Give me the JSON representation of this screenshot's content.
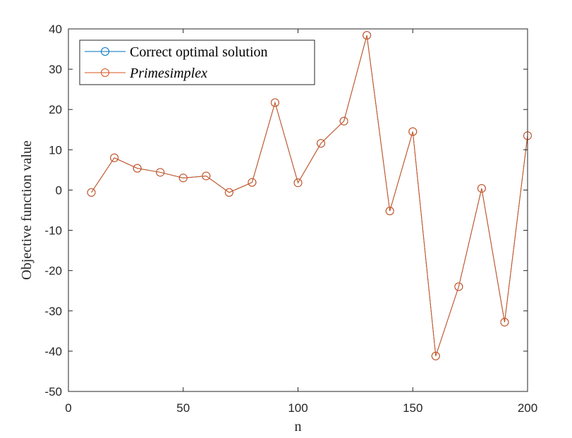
{
  "chart_data": {
    "type": "line",
    "title": "",
    "xlabel": "n",
    "ylabel": "Objective function value",
    "xlim": [
      0,
      200
    ],
    "ylim": [
      -50,
      40
    ],
    "xticks": [
      0,
      50,
      100,
      150,
      200
    ],
    "yticks": [
      -50,
      -40,
      -30,
      -20,
      -10,
      0,
      10,
      20,
      30,
      40
    ],
    "grid": false,
    "legend_position": "top-left",
    "x": [
      10,
      20,
      30,
      40,
      50,
      60,
      70,
      80,
      90,
      100,
      110,
      120,
      130,
      140,
      150,
      160,
      170,
      180,
      190,
      200
    ],
    "series": [
      {
        "name": "Correct optimal solution",
        "color": "#0072BD",
        "marker": "circle",
        "values": [
          -0.6,
          8.0,
          5.4,
          4.4,
          3.0,
          3.5,
          -0.6,
          1.9,
          21.7,
          1.8,
          11.6,
          17.1,
          38.4,
          -5.2,
          14.5,
          -41.2,
          -24.0,
          0.4,
          -32.8,
          13.5
        ]
      },
      {
        "name": "Primesimplex",
        "color": "#D95319",
        "marker": "circle",
        "italic": true,
        "values": [
          -0.6,
          8.0,
          5.4,
          4.4,
          3.0,
          3.5,
          -0.6,
          1.9,
          21.7,
          1.8,
          11.6,
          17.1,
          38.4,
          -5.2,
          14.5,
          -41.2,
          -24.0,
          0.4,
          -32.8,
          13.5
        ]
      }
    ]
  }
}
